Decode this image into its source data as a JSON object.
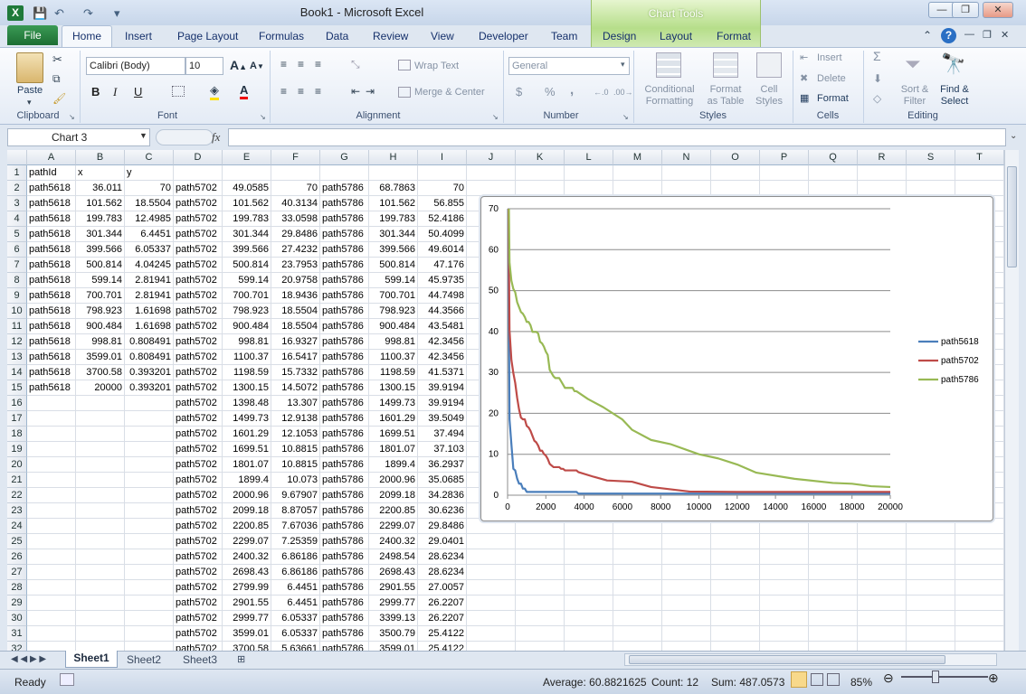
{
  "title": {
    "doc": "Book1  -  Microsoft Excel",
    "chart_tools": "Chart Tools"
  },
  "qat": {
    "save": "💾",
    "undo": "↶",
    "redo": "↷",
    "more": "▾"
  },
  "window": {
    "min": "—",
    "restore": "❐",
    "close": "✕",
    "ribbon_min": "⌃",
    "help": "?"
  },
  "tabs": [
    "File",
    "Home",
    "Insert",
    "Page Layout",
    "Formulas",
    "Data",
    "Review",
    "View",
    "Developer",
    "Team",
    "Design",
    "Layout",
    "Format"
  ],
  "ribbon": {
    "clipboard": {
      "label": "Clipboard",
      "paste": "Paste"
    },
    "font": {
      "label": "Font",
      "name": "Calibri (Body)",
      "size": "10",
      "bold": "B",
      "italic": "I",
      "underline": "U"
    },
    "alignment": {
      "label": "Alignment",
      "wrap": "Wrap Text",
      "merge": "Merge & Center"
    },
    "number": {
      "label": "Number",
      "format": "General",
      "currency": "$",
      "percent": "%",
      "comma": ","
    },
    "styles": {
      "label": "Styles",
      "conditional": "Conditional",
      "conditional2": "Formatting",
      "format_table": "Format",
      "format_table2": "as Table",
      "cell_styles": "Cell",
      "cell_styles2": "Styles"
    },
    "cells": {
      "label": "Cells",
      "insert": "Insert",
      "delete": "Delete",
      "format": "Format"
    },
    "editing": {
      "label": "Editing",
      "sum": "Σ",
      "sort": "Sort &",
      "sort2": "Filter",
      "find": "Find &",
      "find2": "Select"
    }
  },
  "formula": {
    "name_box": "Chart 3",
    "fx": "fx",
    "value": ""
  },
  "columns": [
    "A",
    "B",
    "C",
    "D",
    "E",
    "F",
    "G",
    "H",
    "I",
    "J",
    "K",
    "L",
    "M",
    "N",
    "O",
    "P",
    "Q",
    "R",
    "S",
    "T"
  ],
  "rows": [
    [
      "pathId",
      "x",
      "y",
      "",
      "",
      "",
      "",
      "",
      ""
    ],
    [
      "path5618",
      "36.011",
      "70",
      "path5702",
      "49.0585",
      "70",
      "path5786",
      "68.7863",
      "70"
    ],
    [
      "path5618",
      "101.562",
      "18.5504",
      "path5702",
      "101.562",
      "40.3134",
      "path5786",
      "101.562",
      "56.855"
    ],
    [
      "path5618",
      "199.783",
      "12.4985",
      "path5702",
      "199.783",
      "33.0598",
      "path5786",
      "199.783",
      "52.4186"
    ],
    [
      "path5618",
      "301.344",
      "6.4451",
      "path5702",
      "301.344",
      "29.8486",
      "path5786",
      "301.344",
      "50.4099"
    ],
    [
      "path5618",
      "399.566",
      "6.05337",
      "path5702",
      "399.566",
      "27.4232",
      "path5786",
      "399.566",
      "49.6014"
    ],
    [
      "path5618",
      "500.814",
      "4.04245",
      "path5702",
      "500.814",
      "23.7953",
      "path5786",
      "500.814",
      "47.176"
    ],
    [
      "path5618",
      "599.14",
      "2.81941",
      "path5702",
      "599.14",
      "20.9758",
      "path5786",
      "599.14",
      "45.9735"
    ],
    [
      "path5618",
      "700.701",
      "2.81941",
      "path5702",
      "700.701",
      "18.9436",
      "path5786",
      "700.701",
      "44.7498"
    ],
    [
      "path5618",
      "798.923",
      "1.61698",
      "path5702",
      "798.923",
      "18.5504",
      "path5786",
      "798.923",
      "44.3566"
    ],
    [
      "path5618",
      "900.484",
      "1.61698",
      "path5702",
      "900.484",
      "18.5504",
      "path5786",
      "900.484",
      "43.5481"
    ],
    [
      "path5618",
      "998.81",
      "0.808491",
      "path5702",
      "998.81",
      "16.9327",
      "path5786",
      "998.81",
      "42.3456"
    ],
    [
      "path5618",
      "3599.01",
      "0.808491",
      "path5702",
      "1100.37",
      "16.5417",
      "path5786",
      "1100.37",
      "42.3456"
    ],
    [
      "path5618",
      "3700.58",
      "0.393201",
      "path5702",
      "1198.59",
      "15.7332",
      "path5786",
      "1198.59",
      "41.5371"
    ],
    [
      "path5618",
      "20000",
      "0.393201",
      "path5702",
      "1300.15",
      "14.5072",
      "path5786",
      "1300.15",
      "39.9194"
    ],
    [
      "",
      "",
      "",
      "path5702",
      "1398.48",
      "13.307",
      "path5786",
      "1499.73",
      "39.9194"
    ],
    [
      "",
      "",
      "",
      "path5702",
      "1499.73",
      "12.9138",
      "path5786",
      "1601.29",
      "39.5049"
    ],
    [
      "",
      "",
      "",
      "path5702",
      "1601.29",
      "12.1053",
      "path5786",
      "1699.51",
      "37.494"
    ],
    [
      "",
      "",
      "",
      "path5702",
      "1699.51",
      "10.8815",
      "path5786",
      "1801.07",
      "37.103"
    ],
    [
      "",
      "",
      "",
      "path5702",
      "1801.07",
      "10.8815",
      "path5786",
      "1899.4",
      "36.2937"
    ],
    [
      "",
      "",
      "",
      "path5702",
      "1899.4",
      "10.073",
      "path5786",
      "2000.96",
      "35.0685"
    ],
    [
      "",
      "",
      "",
      "path5702",
      "2000.96",
      "9.67907",
      "path5786",
      "2099.18",
      "34.2836"
    ],
    [
      "",
      "",
      "",
      "path5702",
      "2099.18",
      "8.87057",
      "path5786",
      "2200.85",
      "30.6236"
    ],
    [
      "",
      "",
      "",
      "path5702",
      "2200.85",
      "7.67036",
      "path5786",
      "2299.07",
      "29.8486"
    ],
    [
      "",
      "",
      "",
      "path5702",
      "2299.07",
      "7.25359",
      "path5786",
      "2400.32",
      "29.0401"
    ],
    [
      "",
      "",
      "",
      "path5702",
      "2400.32",
      "6.86186",
      "path5786",
      "2498.54",
      "28.6234"
    ],
    [
      "",
      "",
      "",
      "path5702",
      "2698.43",
      "6.86186",
      "path5786",
      "2698.43",
      "28.6234"
    ],
    [
      "",
      "",
      "",
      "path5702",
      "2799.99",
      "6.4451",
      "path5786",
      "2901.55",
      "27.0057"
    ],
    [
      "",
      "",
      "",
      "path5702",
      "2901.55",
      "6.4451",
      "path5786",
      "2999.77",
      "26.2207"
    ],
    [
      "",
      "",
      "",
      "path5702",
      "2999.77",
      "6.05337",
      "path5786",
      "3399.13",
      "26.2207"
    ],
    [
      "",
      "",
      "",
      "path5702",
      "3599.01",
      "6.05337",
      "path5786",
      "3500.79",
      "25.4122"
    ],
    [
      "",
      "",
      "",
      "path5702",
      "3700.58",
      "5.63661",
      "path5786",
      "3599.01",
      "25.4122"
    ]
  ],
  "sheet_tabs": [
    "Sheet1",
    "Sheet2",
    "Sheet3"
  ],
  "status": {
    "ready": "Ready",
    "average": "Average: 60.8821625",
    "count": "Count: 12",
    "sum": "Sum: 487.0573",
    "zoom": "85%"
  },
  "chart_data": {
    "type": "line",
    "xlim": [
      0,
      20000
    ],
    "ylim": [
      0,
      70
    ],
    "xticks": [
      "0",
      "2000",
      "4000",
      "6000",
      "8000",
      "10000",
      "12000",
      "14000",
      "16000",
      "18000",
      "20000"
    ],
    "yticks": [
      "0",
      "10",
      "20",
      "30",
      "40",
      "50",
      "60",
      "70"
    ],
    "grid": "horizontal",
    "legend": "right",
    "series": [
      {
        "name": "path5618",
        "color": "#4a7ebb",
        "x": [
          36.011,
          101.562,
          199.783,
          301.344,
          399.566,
          500.814,
          599.14,
          700.701,
          798.923,
          900.484,
          998.81,
          3599.01,
          3700.58,
          20000
        ],
        "y": [
          70,
          18.5504,
          12.4985,
          6.4451,
          6.05337,
          4.04245,
          2.81941,
          2.81941,
          1.61698,
          1.61698,
          0.808491,
          0.808491,
          0.393201,
          0.393201
        ]
      },
      {
        "name": "path5702",
        "color": "#be4b48",
        "x": [
          49.0585,
          101.562,
          199.783,
          301.344,
          399.566,
          500.814,
          599.14,
          700.701,
          798.923,
          900.484,
          998.81,
          1100.37,
          1198.59,
          1300.15,
          1398.48,
          1499.73,
          1601.29,
          1699.51,
          1801.07,
          1899.4,
          2000.96,
          2099.18,
          2200.85,
          2299.07,
          2400.32,
          2698.43,
          2799.99,
          2901.55,
          2999.77,
          3599.01,
          3700.58,
          4500,
          5200,
          6500,
          7500,
          9500,
          12000,
          15000,
          20000
        ],
        "y": [
          70,
          40.3134,
          33.0598,
          29.8486,
          27.4232,
          23.7953,
          20.9758,
          18.9436,
          18.5504,
          18.5504,
          16.9327,
          16.5417,
          15.7332,
          14.5072,
          13.307,
          12.9138,
          12.1053,
          10.8815,
          10.8815,
          10.073,
          9.67907,
          8.87057,
          7.67036,
          7.25359,
          6.86186,
          6.86186,
          6.4451,
          6.4451,
          6.05337,
          6.05337,
          5.63661,
          4.5,
          3.6,
          3.3,
          2.0,
          0.9,
          0.8,
          0.8,
          0.8
        ]
      },
      {
        "name": "path5786",
        "color": "#98b954",
        "x": [
          68.7863,
          101.562,
          199.783,
          301.344,
          399.566,
          500.814,
          599.14,
          700.701,
          798.923,
          900.484,
          998.81,
          1100.37,
          1198.59,
          1300.15,
          1499.73,
          1601.29,
          1699.51,
          1801.07,
          1899.4,
          2000.96,
          2099.18,
          2200.85,
          2299.07,
          2400.32,
          2498.54,
          2698.43,
          2901.55,
          2999.77,
          3399.13,
          3500.79,
          3599.01,
          4200,
          5000,
          6000,
          6500,
          7500,
          8500,
          10000,
          11000,
          12000,
          13000,
          15000,
          17000,
          18000,
          19000,
          20000
        ],
        "y": [
          70,
          56.855,
          52.4186,
          50.4099,
          49.6014,
          47.176,
          45.9735,
          44.7498,
          44.3566,
          43.5481,
          42.3456,
          42.3456,
          41.5371,
          39.9194,
          39.9194,
          39.5049,
          37.494,
          37.103,
          36.2937,
          35.0685,
          34.2836,
          30.6236,
          29.8486,
          29.0401,
          28.6234,
          28.6234,
          27.0057,
          26.2207,
          26.2207,
          25.4122,
          25.4122,
          23.5,
          21.5,
          18.5,
          16,
          13.5,
          12.5,
          10,
          9,
          7.5,
          5.5,
          4,
          3,
          2.8,
          2.2,
          2.0
        ]
      }
    ]
  }
}
